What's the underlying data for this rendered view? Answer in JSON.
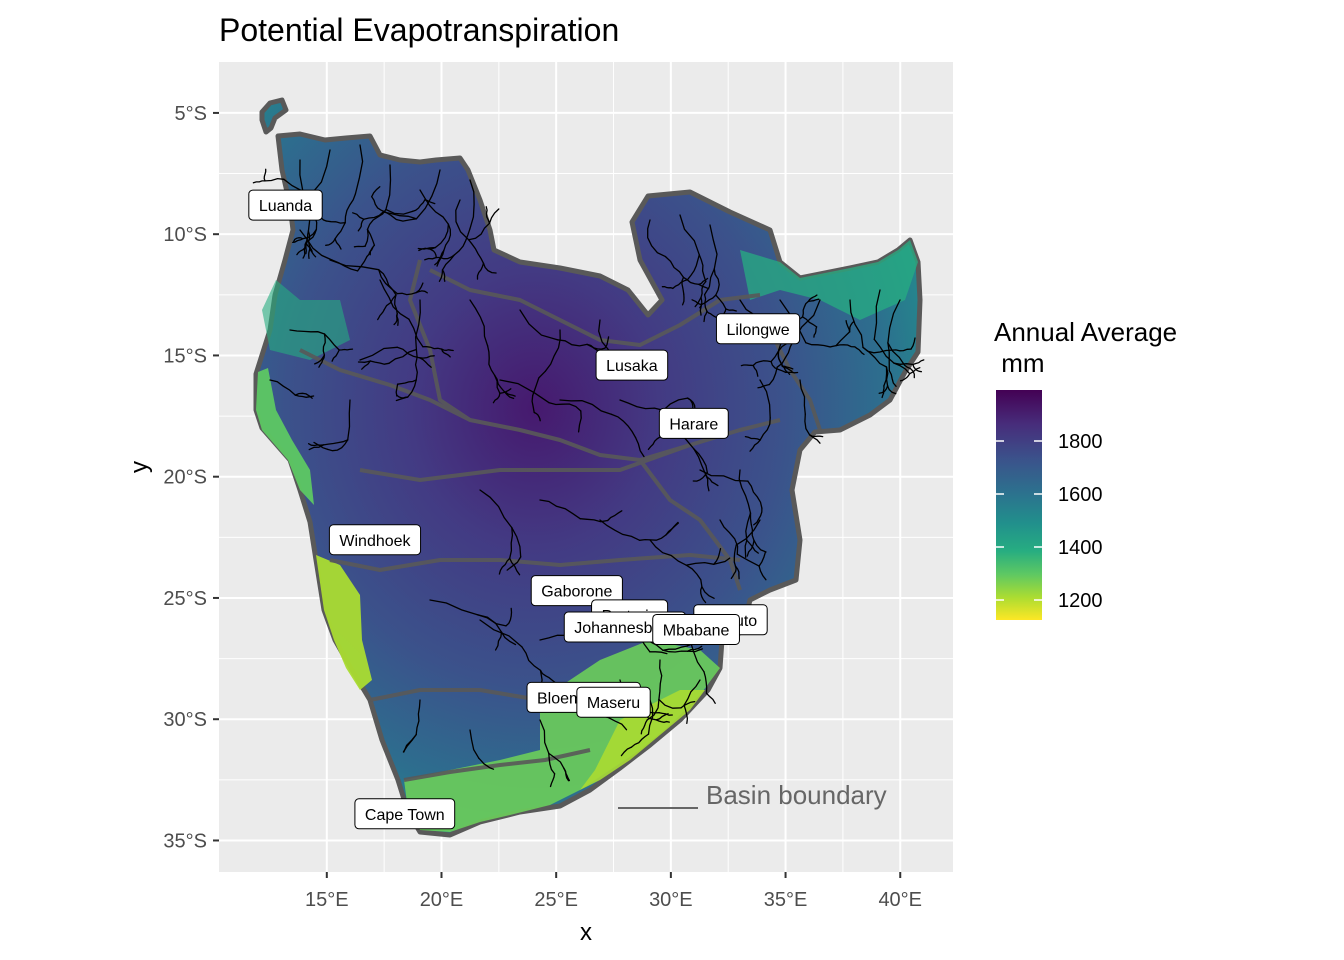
{
  "title": "Potential Evapotranspiration",
  "axes": {
    "x_title": "x",
    "y_title": "y",
    "x_ticks": [
      {
        "value": 15,
        "label": "15°E"
      },
      {
        "value": 20,
        "label": "20°E"
      },
      {
        "value": 25,
        "label": "25°E"
      },
      {
        "value": 30,
        "label": "30°E"
      },
      {
        "value": 35,
        "label": "35°E"
      },
      {
        "value": 40,
        "label": "40°E"
      }
    ],
    "y_ticks": [
      {
        "value": -5,
        "label": "5°S"
      },
      {
        "value": -10,
        "label": "10°S"
      },
      {
        "value": -15,
        "label": "15°S"
      },
      {
        "value": -20,
        "label": "20°S"
      },
      {
        "value": -25,
        "label": "25°S"
      },
      {
        "value": -30,
        "label": "30°S"
      },
      {
        "value": -35,
        "label": "35°S"
      }
    ],
    "x_range": [
      10.3,
      42.3
    ],
    "y_range": [
      -36.3,
      -2.9
    ]
  },
  "legend": {
    "title_line1": "Annual Average",
    "title_line2": " mm",
    "ticks": [
      "1800",
      "1600",
      "1400",
      "1200"
    ],
    "colors": [
      "#440154",
      "#3b528b",
      "#21908c",
      "#5dc863",
      "#fde725"
    ]
  },
  "cities": [
    {
      "name": "Luanda",
      "lon": 13.2,
      "lat": -8.8
    },
    {
      "name": "Lilongwe",
      "lon": 33.8,
      "lat": -13.9
    },
    {
      "name": "Lusaka",
      "lon": 28.3,
      "lat": -15.4
    },
    {
      "name": "Harare",
      "lon": 31.0,
      "lat": -17.8
    },
    {
      "name": "Windhoek",
      "lon": 17.1,
      "lat": -22.6
    },
    {
      "name": "Gaborone",
      "lon": 25.9,
      "lat": -24.7
    },
    {
      "name": "Pretoria",
      "lon": 28.2,
      "lat": -25.7
    },
    {
      "name": "Maputo",
      "lon": 32.6,
      "lat": -25.9
    },
    {
      "name": "Johannesburg",
      "lon": 28.0,
      "lat": -26.2
    },
    {
      "name": "Mbabane",
      "lon": 31.1,
      "lat": -26.3
    },
    {
      "name": "Bloemfontein",
      "lon": 26.2,
      "lat": -29.1
    },
    {
      "name": "Maseru",
      "lon": 27.5,
      "lat": -29.3
    },
    {
      "name": "Cape Town",
      "lon": 18.4,
      "lat": -33.9
    }
  ],
  "annotation": {
    "text": "Basin boundary",
    "color": "#666666"
  },
  "colors": {
    "panel_bg": "#ebebeb",
    "grid": "#ffffff",
    "basin_boundary": "#595959",
    "river": "#000000"
  }
}
